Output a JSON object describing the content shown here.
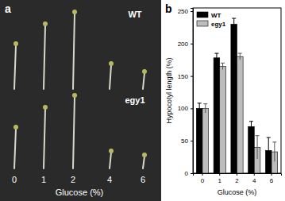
{
  "panel_a": {
    "label": "a",
    "rows": [
      "WT",
      "egy1"
    ],
    "x_labels": [
      "0",
      "1",
      "2",
      "4",
      "6"
    ],
    "x_title": "Glucose (%)"
  },
  "chart_data": {
    "type": "bar",
    "title": "b",
    "x_label": "Glucose (%)",
    "y_label": "Hypocotyl length (%)",
    "categories": [
      "0",
      "1",
      "2",
      "4",
      "6"
    ],
    "series": [
      {
        "name": "WT",
        "color": "#000000",
        "values": [
          100,
          178,
          230,
          72,
          35
        ],
        "errors": [
          8,
          7,
          9,
          8,
          20
        ]
      },
      {
        "name": "egy1",
        "color": "#bdbdbd",
        "values": [
          100,
          165,
          180,
          40,
          33
        ],
        "errors": [
          7,
          5,
          5,
          18,
          15
        ]
      }
    ],
    "ylim": [
      0,
      255
    ],
    "yticks": [
      0,
      50,
      100,
      150,
      200,
      250
    ],
    "legend": "upper-left"
  }
}
